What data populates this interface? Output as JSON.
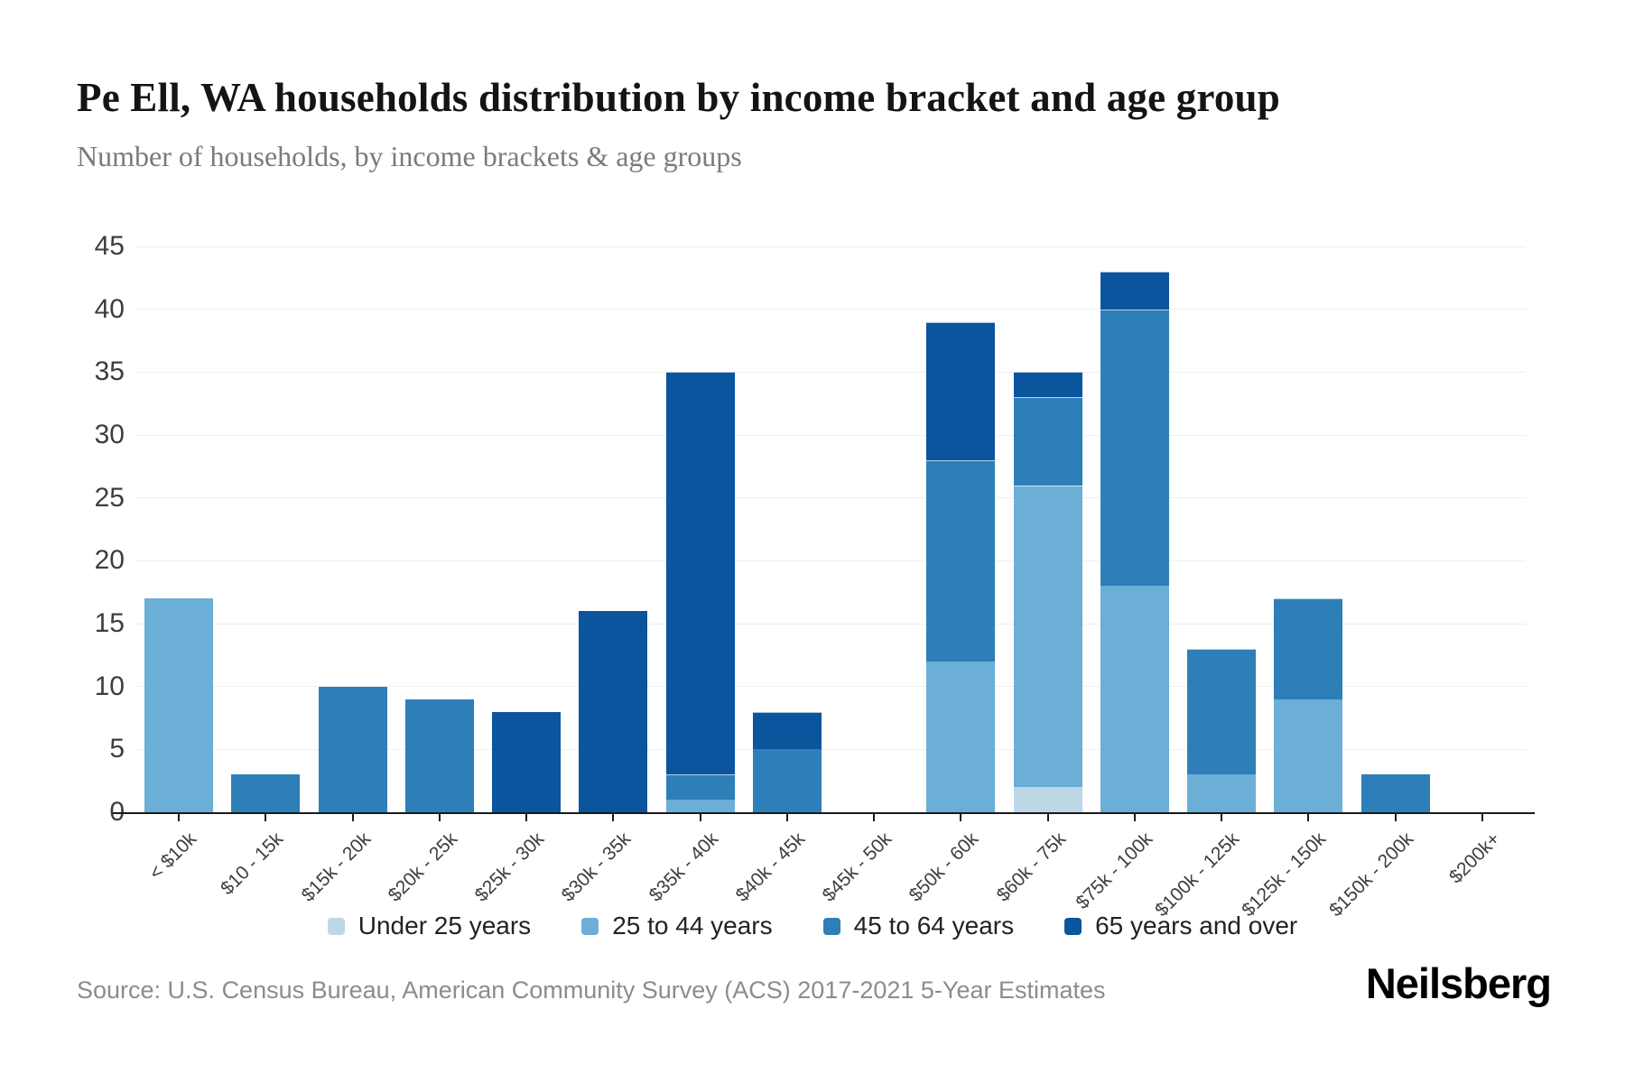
{
  "header": {
    "title": "Pe Ell, WA households distribution by income bracket and age group",
    "subtitle": "Number of households, by income brackets & age groups"
  },
  "footer": {
    "source": "Source: U.S. Census Bureau, American Community Survey (ACS) 2017-2021 5-Year Estimates",
    "brand": "Neilsberg"
  },
  "colors": {
    "under_25": "#bdd7e7",
    "age_25_44": "#6baed6",
    "age_45_64": "#2e7eb8",
    "age_65_over": "#0b549e",
    "gridline": "#efefef",
    "axis": "#1a1a1a"
  },
  "chart_data": {
    "type": "bar",
    "stacked": true,
    "title": "Pe Ell, WA households distribution by income bracket and age group",
    "subtitle": "Number of households, by income brackets & age groups",
    "xlabel": "",
    "ylabel": "",
    "ylim": [
      0,
      45
    ],
    "yticks": [
      0,
      5,
      10,
      15,
      20,
      25,
      30,
      35,
      40,
      45
    ],
    "grid": "horizontal",
    "legend_position": "bottom",
    "categories": [
      "< $10k",
      "$10 - 15k",
      "$15k - 20k",
      "$20k - 25k",
      "$25k - 30k",
      "$30k - 35k",
      "$35k - 40k",
      "$40k - 45k",
      "$45k - 50k",
      "$50k - 60k",
      "$60k - 75k",
      "$75k - 100k",
      "$100k - 125k",
      "$125k - 150k",
      "$150k - 200k",
      "$200k+"
    ],
    "series": [
      {
        "name": "Under 25 years",
        "color": "#bdd7e7",
        "values": [
          0,
          0,
          0,
          0,
          0,
          0,
          0,
          0,
          0,
          0,
          2,
          0,
          0,
          0,
          0,
          0
        ]
      },
      {
        "name": "25 to 44 years",
        "color": "#6baed6",
        "values": [
          17,
          0,
          0,
          0,
          0,
          0,
          1,
          0,
          0,
          12,
          24,
          18,
          3,
          9,
          0,
          0
        ]
      },
      {
        "name": "45 to 64 years",
        "color": "#2e7eb8",
        "values": [
          0,
          3,
          10,
          9,
          0,
          0,
          2,
          5,
          0,
          16,
          7,
          22,
          10,
          8,
          3,
          0
        ]
      },
      {
        "name": "65 years and over",
        "color": "#0b549e",
        "values": [
          0,
          0,
          0,
          0,
          8,
          16,
          32,
          3,
          0,
          11,
          2,
          3,
          0,
          0,
          0,
          0
        ]
      }
    ],
    "totals": [
      17,
      3,
      10,
      9,
      8,
      16,
      35,
      8,
      0,
      39,
      35,
      43,
      13,
      17,
      3,
      0
    ]
  }
}
